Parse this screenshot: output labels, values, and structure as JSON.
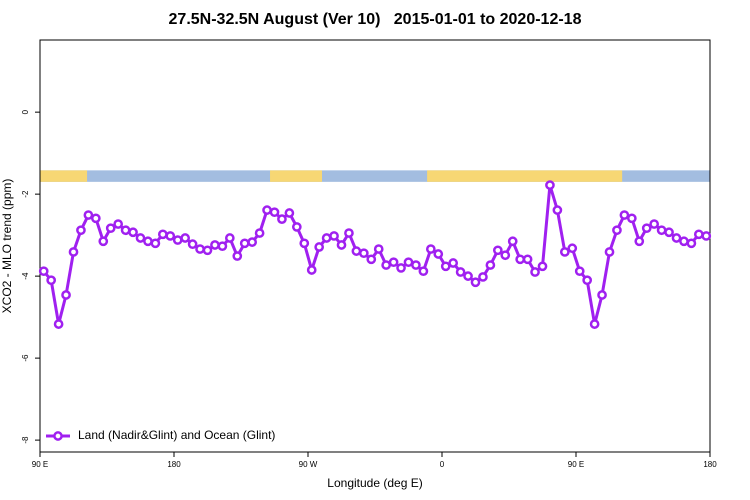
{
  "chart_data": {
    "type": "line",
    "title": "27.5N-32.5N August (Ver 10)   2015-01-01 to 2020-12-18",
    "x_label": "Longitude (deg E)",
    "y_label": "XCO2 - MLO trend (ppm)",
    "xlim": [
      90,
      540
    ],
    "ylim": [
      -8.29,
      1.76
    ],
    "xticks": [
      {
        "value": 90,
        "label": "90 E"
      },
      180,
      {
        "value": 270,
        "label": "90 W"
      },
      {
        "value": 360,
        "label": "0"
      },
      {
        "value": 450,
        "label": "90 E"
      },
      {
        "value": 540,
        "label": "180"
      }
    ],
    "yticks": [
      0,
      -2,
      -4,
      -6,
      -8
    ],
    "surface_band": {
      "ylim": [
        -1.7,
        -1.42
      ],
      "land_color": "#f7d774",
      "ocean_color": "#a3bde0",
      "land": [
        [
          90,
          121.6
        ],
        [
          244.5,
          279.4
        ],
        [
          350,
          481
        ]
      ]
    },
    "legend": "bottomleft",
    "series": [
      {
        "name": "Land (Nadir&Glint) and Ocean (Glint)",
        "color": "#a020f0",
        "x": [
          92.5,
          97.5,
          102.5,
          107.5,
          112.5,
          117.5,
          122.5,
          127.5,
          132.5,
          137.5,
          142.5,
          147.5,
          152.5,
          157.5,
          162.5,
          167.5,
          172.5,
          177.5,
          182.5,
          187.5,
          192.5,
          197.5,
          202.5,
          207.5,
          212.5,
          217.5,
          222.5,
          227.5,
          232.5,
          237.5,
          242.5,
          247.5,
          252.5,
          257.5,
          262.5,
          267.5,
          272.5,
          277.5,
          282.5,
          287.5,
          292.5,
          297.5,
          302.5,
          307.5,
          312.5,
          317.5,
          322.5,
          327.5,
          332.5,
          337.5,
          342.5,
          347.5,
          352.5,
          357.5,
          362.5,
          367.5,
          372.5,
          377.5,
          382.5,
          387.5,
          392.5,
          397.5,
          402.5,
          407.5,
          412.5,
          417.5,
          422.5,
          427.5,
          432.5,
          437.5,
          442.5,
          447.5,
          452.5,
          457.5,
          462.5,
          467.5,
          472.5,
          477.5,
          482.5,
          487.5,
          492.5,
          497.5,
          502.5,
          507.5,
          512.5,
          517.5,
          522.5,
          527.5,
          532.5,
          537.5
        ],
        "values": [
          -3.88,
          -4.1,
          -5.17,
          -4.46,
          -3.41,
          -2.88,
          -2.51,
          -2.59,
          -3.15,
          -2.83,
          -2.73,
          -2.88,
          -2.93,
          -3.07,
          -3.15,
          -3.2,
          -2.98,
          -3.02,
          -3.12,
          -3.07,
          -3.22,
          -3.34,
          -3.37,
          -3.24,
          -3.27,
          -3.07,
          -3.51,
          -3.2,
          -3.17,
          -2.95,
          -2.39,
          -2.44,
          -2.61,
          -2.46,
          -2.8,
          -3.2,
          -3.85,
          -3.29,
          -3.07,
          -3.02,
          -3.24,
          -2.95,
          -3.39,
          -3.44,
          -3.59,
          -3.34,
          -3.73,
          -3.66,
          -3.8,
          -3.66,
          -3.73,
          -3.88,
          -3.34,
          -3.46,
          -3.76,
          -3.68,
          -3.9,
          -4.0,
          -4.15,
          -4.02,
          -3.73,
          -3.37,
          -3.49,
          -3.15,
          -3.59,
          -3.59,
          -3.9,
          -3.76,
          -1.78,
          -2.39,
          -3.41,
          -3.32,
          -3.88,
          -4.1,
          -5.17,
          -4.46,
          -3.41,
          -2.88,
          -2.51,
          -2.59,
          -3.15,
          -2.83,
          -2.73,
          -2.88,
          -2.93,
          -3.07,
          -3.15,
          -3.2,
          -2.98,
          -3.02
        ]
      }
    ]
  }
}
